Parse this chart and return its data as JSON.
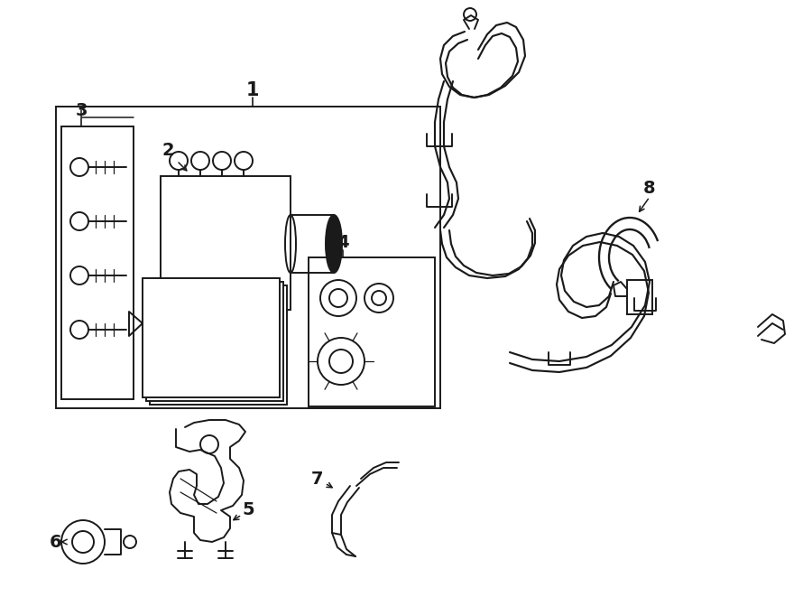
{
  "bg_color": "#ffffff",
  "line_color": "#1a1a1a",
  "lw": 1.4,
  "fig_w": 9.0,
  "fig_h": 6.61,
  "dpi": 100,
  "xlim": [
    0,
    900
  ],
  "ylim": [
    0,
    661
  ]
}
